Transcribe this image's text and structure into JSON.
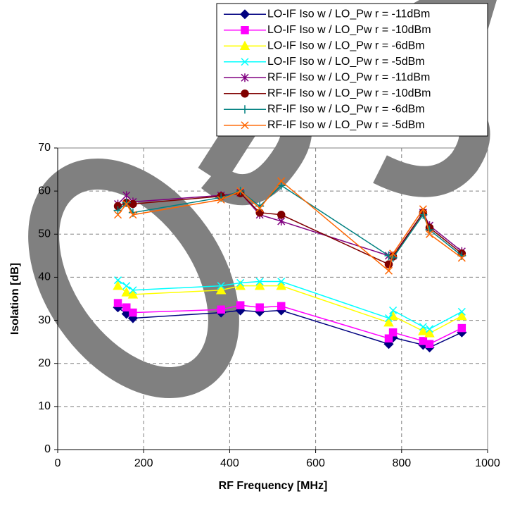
{
  "chart_data": {
    "type": "line",
    "x_label": "RF  Frequency [MHz]",
    "y_label": "Isolation [dB]",
    "x": [
      140,
      160,
      175,
      380,
      425,
      470,
      520,
      770,
      780,
      850,
      865,
      940
    ],
    "xlim": [
      0,
      1000
    ],
    "xticks": [
      0,
      200,
      400,
      600,
      800,
      1000
    ],
    "ylim": [
      0,
      70
    ],
    "yticks": [
      0,
      10,
      20,
      30,
      40,
      50,
      60,
      70
    ],
    "grid": true,
    "legend": "upper right",
    "series": [
      {
        "name": "LO-IF Iso w / LO_Pw r = -11dBm",
        "color": "#000080",
        "marker": "diamond",
        "values": [
          33,
          31.5,
          30.5,
          31.8,
          32.3,
          32,
          32.3,
          24.5,
          26,
          24.3,
          23.7,
          27.2
        ]
      },
      {
        "name": "LO-IF Iso w / LO_Pw r = -10dBm",
        "color": "#ff00ff",
        "marker": "square",
        "values": [
          34,
          33,
          31.8,
          32.5,
          33.5,
          33,
          33.3,
          25.8,
          27.2,
          25.2,
          24.5,
          28.2
        ]
      },
      {
        "name": "LO-IF Iso w / LO_Pw r = -6dBm",
        "color": "#ffff00",
        "marker": "triangle",
        "values": [
          38,
          36.5,
          36,
          37,
          38,
          38,
          38,
          29.5,
          31,
          27.5,
          27,
          31
        ]
      },
      {
        "name": "LO-IF Iso w / LO_Pw r = -5dBm",
        "color": "#00ffff",
        "marker": "x",
        "values": [
          39.3,
          38,
          37,
          38,
          38.7,
          39,
          39,
          30.5,
          32.3,
          28.5,
          28,
          32
        ]
      },
      {
        "name": "RF-IF Iso w / LO_Pw r = -11dBm",
        "color": "#800080",
        "marker": "asterisk",
        "values": [
          57,
          59,
          57.5,
          59,
          59.6,
          54.5,
          53,
          45,
          45,
          55,
          52,
          46
        ]
      },
      {
        "name": "RF-IF Iso w / LO_Pw r = -10dBm",
        "color": "#800000",
        "marker": "circle",
        "values": [
          56.5,
          57.3,
          57,
          58.8,
          59.5,
          55,
          54.5,
          43,
          44.8,
          55,
          51.5,
          45.5
        ]
      },
      {
        "name": "RF-IF Iso w / LO_Pw r = -6dBm",
        "color": "#008080",
        "marker": "plus",
        "values": [
          55.5,
          57.3,
          55,
          58.5,
          60,
          56.5,
          61.3,
          45,
          44.5,
          54.5,
          51,
          45
        ]
      },
      {
        "name": "RF-IF Iso w / LO_Pw r = -5dBm",
        "color": "#ff6600",
        "marker": "x",
        "values": [
          54.5,
          57,
          54.5,
          58,
          60,
          56,
          62.3,
          41.5,
          45.5,
          55.8,
          50,
          44.5
        ]
      }
    ]
  }
}
